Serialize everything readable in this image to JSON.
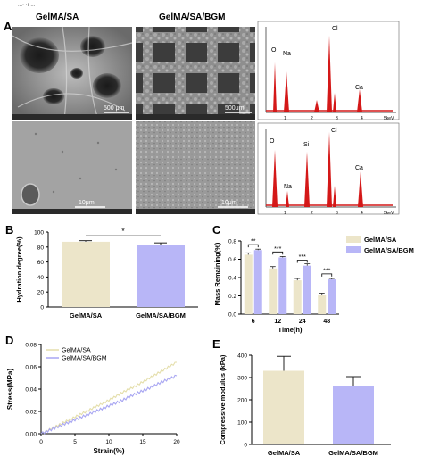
{
  "header": {
    "top_fragment": "...· ·r ..."
  },
  "panel_a": {
    "letter": "A",
    "col1_title": "GelMA/SA",
    "col2_title": "GelMA/SA/BGM",
    "sem": [
      {
        "scale": "500 μm"
      },
      {
        "scale": "500μm"
      },
      {
        "scale": "10μm"
      },
      {
        "scale": "10μm"
      }
    ],
    "edx_top": {
      "peaks": [
        "O",
        "Na",
        "Cl",
        "Ca"
      ],
      "ticks": [
        "1",
        "2",
        "3",
        "4",
        "5keV"
      ]
    },
    "edx_bottom": {
      "peaks": [
        "O",
        "Si",
        "Cl",
        "Na",
        "Ca"
      ],
      "ticks": [
        "1",
        "2",
        "3",
        "4",
        "5keV"
      ]
    }
  },
  "colors": {
    "gelma_sa": "#ece5c9",
    "gelma_sa_bgm": "#b8b6f7",
    "edx": "#d41818",
    "line_sa": "#e4deaa",
    "line_bgm": "#a8a6f2"
  },
  "chart_data": [
    {
      "id": "B",
      "type": "bar",
      "ylabel": "Hydration degree(%)",
      "categories": [
        "GelMA/SA",
        "GelMA/SA/BGM"
      ],
      "values": [
        87,
        83
      ],
      "errors": [
        1.5,
        2.5
      ],
      "ylim": [
        0,
        100
      ],
      "yticks": [
        "0",
        "20",
        "40",
        "60",
        "80",
        "100"
      ],
      "significance": "*"
    },
    {
      "id": "C",
      "type": "bar",
      "ylabel": "Mass Remaining(%)",
      "xlabel": "Time(h)",
      "categories": [
        "6",
        "12",
        "24",
        "48"
      ],
      "series": [
        {
          "name": "GelMA/SA",
          "values": [
            0.65,
            0.5,
            0.37,
            0.21
          ],
          "errors": [
            0.02,
            0.02,
            0.02,
            0.02
          ]
        },
        {
          "name": "GelMA/SA/BGM",
          "values": [
            0.7,
            0.62,
            0.53,
            0.38
          ],
          "errors": [
            0.01,
            0.01,
            0.02,
            0.01
          ]
        }
      ],
      "significance": [
        "**",
        "***",
        "***",
        "***"
      ],
      "ylim": [
        0,
        0.8
      ],
      "yticks": [
        "0.0",
        "0.2",
        "0.4",
        "0.6",
        "0.8"
      ],
      "legend": "top-right"
    },
    {
      "id": "D",
      "type": "line",
      "ylabel": "Stress(MPa)",
      "xlabel": "Strain(%)",
      "xlim": [
        0,
        20
      ],
      "ylim": [
        0,
        0.08
      ],
      "xticks": [
        "0",
        "5",
        "10",
        "15",
        "20"
      ],
      "yticks": [
        "0.00",
        "0.02",
        "0.04",
        "0.06",
        "0.08"
      ],
      "series": [
        {
          "name": "GelMA/SA",
          "x": [
            0,
            2,
            4,
            6,
            8,
            10,
            12,
            14,
            16,
            18,
            20
          ],
          "y": [
            0,
            0.006,
            0.012,
            0.018,
            0.024,
            0.03,
            0.037,
            0.043,
            0.05,
            0.057,
            0.064
          ]
        },
        {
          "name": "GelMA/SA/BGM",
          "x": [
            0,
            2,
            4,
            6,
            8,
            10,
            12,
            14,
            16,
            18,
            20
          ],
          "y": [
            0,
            0.005,
            0.01,
            0.015,
            0.02,
            0.025,
            0.03,
            0.036,
            0.041,
            0.047,
            0.052
          ]
        }
      ],
      "legend": "top-left"
    },
    {
      "id": "E",
      "type": "bar",
      "ylabel": "Compressive modulus (kPa)",
      "categories": [
        "GelMA/SA",
        "GelMA/SA/BGM"
      ],
      "values": [
        330,
        262
      ],
      "errors": [
        65,
        42
      ],
      "ylim": [
        0,
        400
      ],
      "yticks": [
        "0",
        "100",
        "200",
        "300",
        "400"
      ]
    }
  ]
}
